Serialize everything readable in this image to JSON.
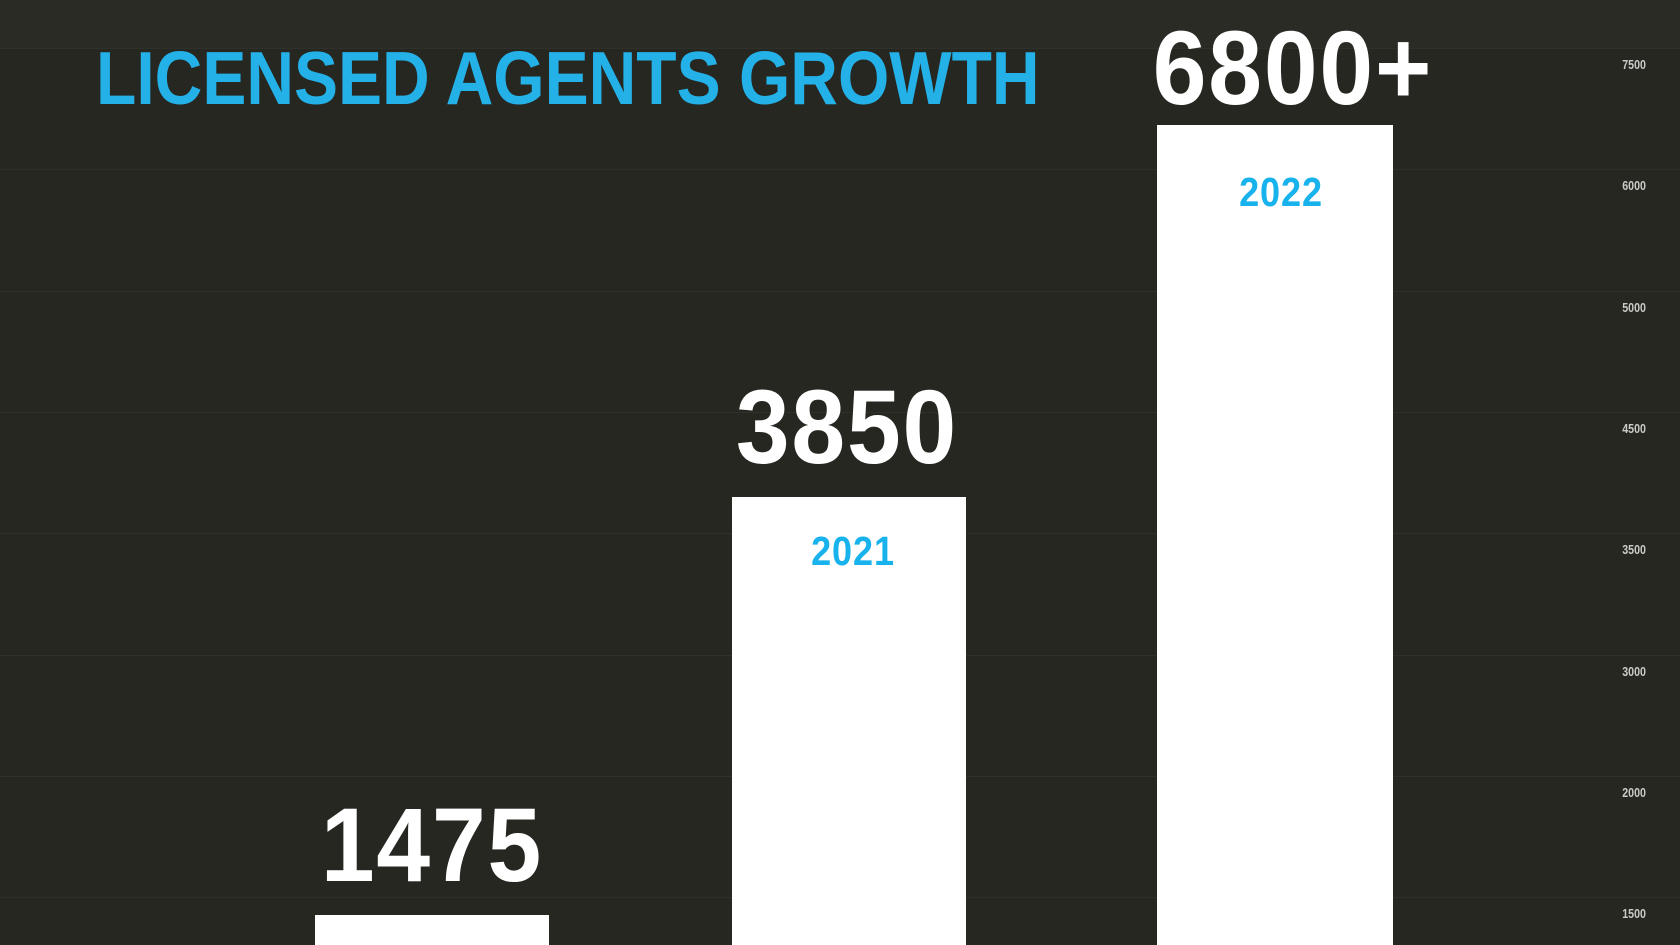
{
  "chart_data": {
    "type": "bar",
    "title": "LICENSED AGENTS GROWTH",
    "orientation": "vertical",
    "categories": [
      "",
      "2021",
      "2022"
    ],
    "values": [
      1475,
      3850,
      6800
    ],
    "bars": [
      {
        "value": 1475,
        "value_label": "1475"
      },
      {
        "value": 3850,
        "value_label": "3850",
        "year_label": "2021"
      },
      {
        "value": 6800,
        "value_label": "6800+",
        "year_label": "2022"
      }
    ],
    "y_axis": {
      "side": "right",
      "ticks": [
        "7500",
        "6000",
        "5000",
        "4500",
        "3500",
        "3000",
        "2000",
        "1500"
      ]
    },
    "grid": true,
    "legend": "none",
    "colors": {
      "background": "#272722",
      "bar_fill": "#ffffff",
      "title_accent": "#23b1e8",
      "year_accent": "#18b2ec",
      "value_text": "#ffffff",
      "tick_text": "#cbcac6",
      "gridline": "#34342f"
    }
  }
}
